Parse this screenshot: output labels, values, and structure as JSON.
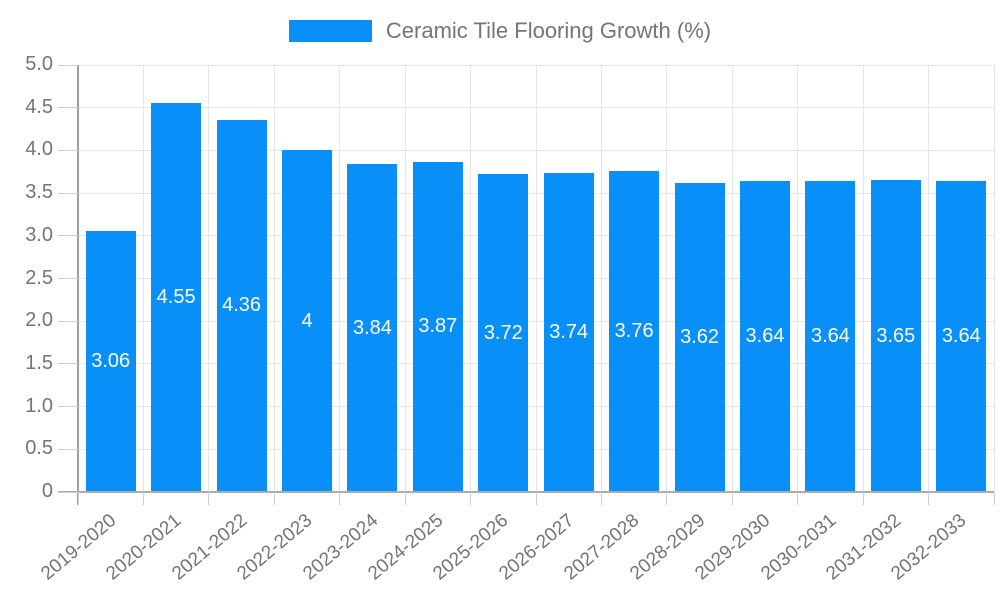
{
  "chart_data": {
    "type": "bar",
    "categories": [
      "2019-2020",
      "2020-2021",
      "2021-2022",
      "2022-2023",
      "2023-2024",
      "2024-2025",
      "2025-2026",
      "2026-2027",
      "2027-2028",
      "2028-2029",
      "2029-2030",
      "2030-2031",
      "2031-2032",
      "2032-2033"
    ],
    "series": [
      {
        "name": "Ceramic Tile Flooring Growth (%)",
        "values": [
          3.06,
          4.55,
          4.36,
          4,
          3.84,
          3.87,
          3.72,
          3.74,
          3.76,
          3.62,
          3.64,
          3.64,
          3.65,
          3.64
        ],
        "value_labels": [
          "3.06",
          "4.55",
          "4.36",
          "4",
          "3.84",
          "3.87",
          "3.72",
          "3.74",
          "3.76",
          "3.62",
          "3.64",
          "3.64",
          "3.65",
          "3.64"
        ]
      }
    ],
    "ylim": [
      0,
      5
    ],
    "ytick_labels": [
      "5.0",
      "4.5",
      "4.0",
      "3.5",
      "3.0",
      "2.5",
      "2.0",
      "1.5",
      "1.0",
      "0.5",
      "0"
    ],
    "grid": true,
    "legend_position": "top",
    "colors": {
      "bar": "#0890f8",
      "axis_text": "#757575",
      "value_label": "#ffffff",
      "grid_line": "#e6e6e6",
      "axis_line": "#9e9e9e",
      "tick_line": "#cfcfcf",
      "background": "#ffffff"
    }
  }
}
